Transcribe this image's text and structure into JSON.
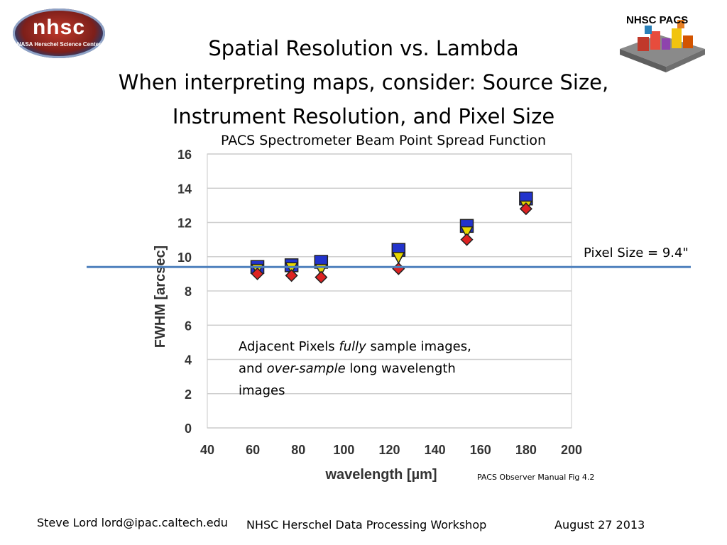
{
  "header": {
    "logo_left_big": "nhsc",
    "logo_left_small": "NASA Herschel Science Center",
    "logo_right_label": "NHSC PACS",
    "title_line1": "Spatial Resolution vs. Lambda",
    "title_line2": "When interpreting maps, consider: Source Size,",
    "title_line3": "Instrument Resolution, and Pixel Size"
  },
  "chart_data": {
    "type": "scatter",
    "title": "PACS Spectrometer Beam Point Spread Function",
    "xlabel": "wavelength [µm]",
    "ylabel": "FWHM [arcsec]",
    "xlim": [
      40,
      200
    ],
    "ylim": [
      0,
      16
    ],
    "xticks": [
      "40",
      "60",
      "80",
      "100",
      "120",
      "140",
      "160",
      "180",
      "200"
    ],
    "yticks": [
      "0",
      "2",
      "4",
      "6",
      "8",
      "10",
      "12",
      "14",
      "16"
    ],
    "grid": "horizontal",
    "series": [
      {
        "color": "#2233cc",
        "marker": "square",
        "x": [
          62,
          77,
          90,
          124,
          154,
          180
        ],
        "y": [
          9.4,
          9.5,
          9.7,
          10.4,
          11.8,
          13.4
        ]
      },
      {
        "color": "#e8d800",
        "marker": "triangle-down",
        "x": [
          62,
          77,
          90,
          124,
          154,
          180
        ],
        "y": [
          9.3,
          9.4,
          9.3,
          10.0,
          11.5,
          13.0
        ]
      },
      {
        "color": "#dd2222",
        "marker": "diamond",
        "x": [
          62,
          77,
          90,
          124,
          154,
          180
        ],
        "y": [
          9.0,
          8.9,
          8.8,
          9.3,
          11.0,
          12.8
        ]
      }
    ],
    "reference_line": {
      "y": 9.4,
      "color": "#4f81bd",
      "label": "Pixel Size = 9.4\""
    }
  },
  "annotation": {
    "line1_pre": "Adjacent Pixels ",
    "line1_em": "fully",
    "line1_post": " sample images,",
    "line2_pre": "and ",
    "line2_em": "over-sample",
    "line2_post": " long wavelength",
    "line3": "images"
  },
  "source_note": "PACS Observer Manual Fig 4.2",
  "footer": {
    "author": "Steve Lord lord@ipac.caltech.edu",
    "event": "NHSC Herschel Data Processing Workshop",
    "date": "August 27 2013"
  }
}
